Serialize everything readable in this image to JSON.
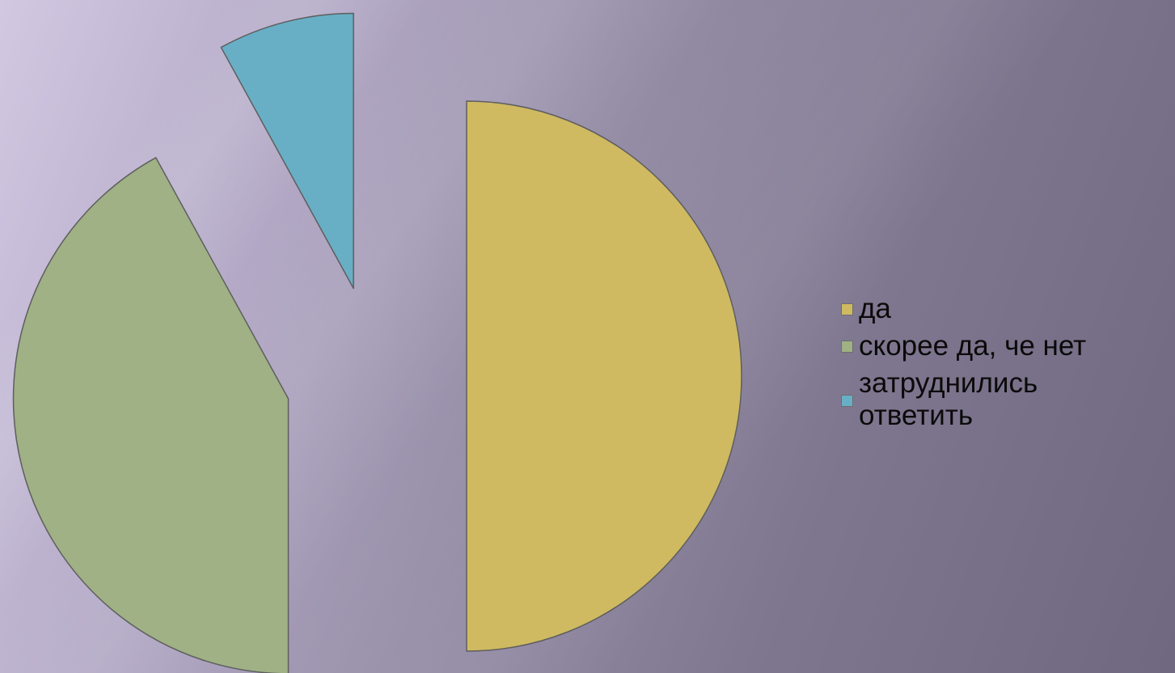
{
  "chart_data": {
    "type": "pie",
    "exploded": true,
    "categories": [
      "да",
      "скорее да, че нет",
      "затруднились ответить"
    ],
    "values": [
      50,
      42,
      8
    ],
    "colors": [
      "#cfba62",
      "#9fb185",
      "#68afc6"
    ],
    "legend_position": "right",
    "title": ""
  },
  "legend": {
    "items": [
      {
        "label": "да",
        "color": "#cfba62"
      },
      {
        "label": "скорее да, че нет",
        "color": "#9fb185"
      },
      {
        "label": "затруднились ответить",
        "color": "#68afc6"
      }
    ]
  }
}
